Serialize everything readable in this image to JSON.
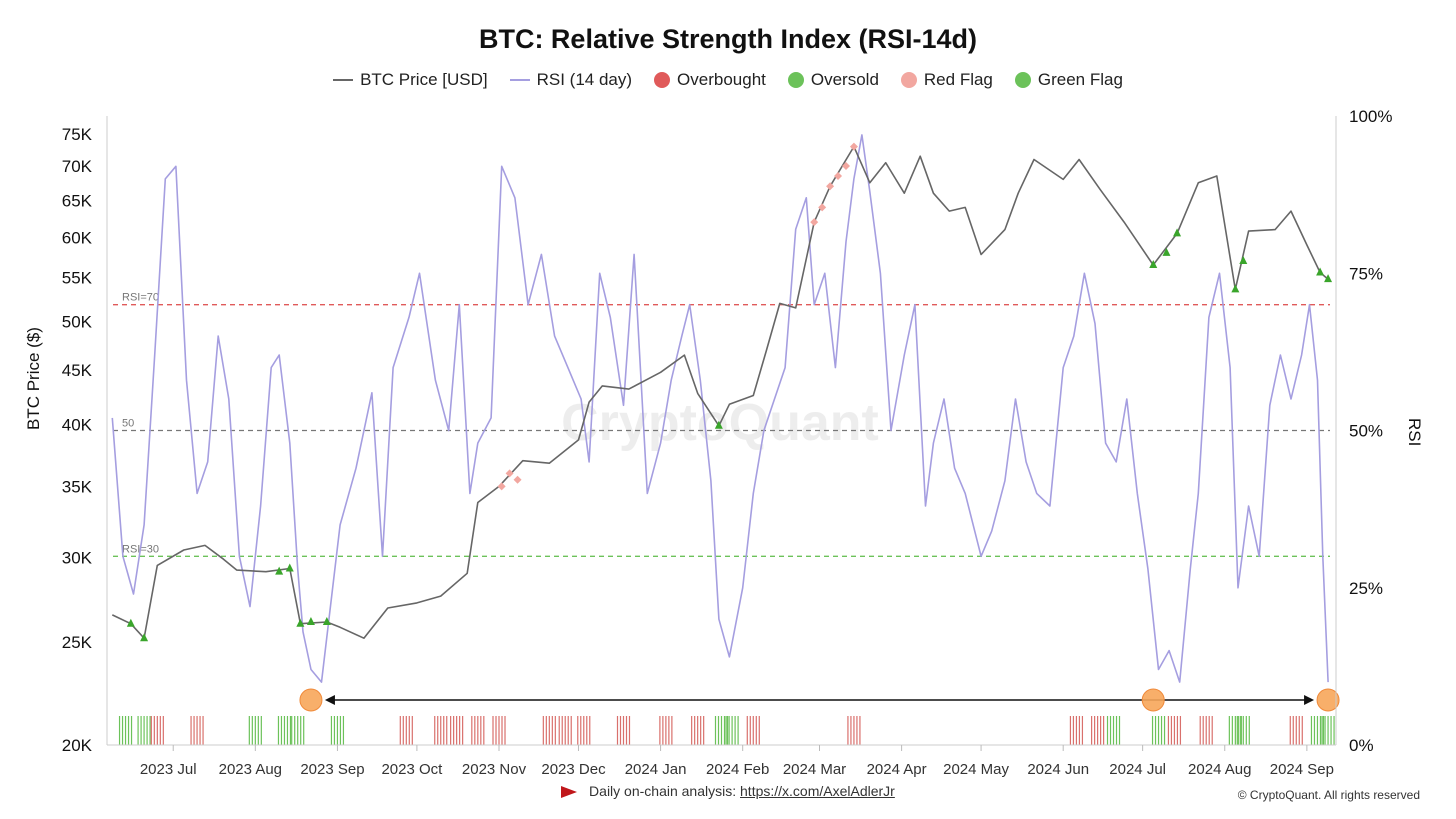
{
  "title": "BTC: Relative Strength Index (RSI-14d)",
  "legend": {
    "price": "BTC Price [USD]",
    "rsi": "RSI (14 day)",
    "overbought": "Overbought",
    "oversold": "Oversold",
    "red_flag": "Red Flag",
    "green_flag": "Green Flag"
  },
  "colors": {
    "price": "#666666",
    "rsi": "#a59ee0",
    "overbought": "#e05a5a",
    "oversold": "#3aa52b",
    "red_flag": "#f2a7a0",
    "green_flag": "#6cc25a",
    "marker": "#f7a65a"
  },
  "axes": {
    "left_label": "BTC Price ($)",
    "right_label": "RSI"
  },
  "watermark": "CryptoQuant",
  "footer": {
    "text": "Daily on-chain analysis:",
    "link": "https://x.com/AxelAdlerJr"
  },
  "copyright": "© CryptoQuant. All rights reserved",
  "chart_data": {
    "type": "line",
    "title": "BTC: Relative Strength Index (RSI-14d)",
    "x_ticks": [
      "2023 Jul",
      "2023 Aug",
      "2023 Sep",
      "2023 Oct",
      "2023 Nov",
      "2023 Dec",
      "2024 Jan",
      "2024 Feb",
      "2024 Mar",
      "2024 Apr",
      "2024 May",
      "2024 Jun",
      "2024 Jul",
      "2024 Aug",
      "2024 Sep"
    ],
    "price_axis": {
      "label": "BTC Price ($)",
      "scale": "log",
      "ylim": [
        20000,
        78000
      ],
      "ticks": [
        20000,
        25000,
        30000,
        35000,
        40000,
        45000,
        50000,
        55000,
        60000,
        65000,
        70000,
        75000
      ],
      "tick_labels": [
        "20K",
        "25K",
        "30K",
        "35K",
        "40K",
        "45K",
        "50K",
        "55K",
        "60K",
        "65K",
        "70K",
        "75K"
      ]
    },
    "rsi_axis": {
      "label": "RSI",
      "ylim": [
        0,
        100
      ],
      "ticks": [
        0,
        25,
        50,
        75,
        100
      ],
      "tick_labels": [
        "0%",
        "25%",
        "50%",
        "75%",
        "100%"
      ]
    },
    "reference_lines": [
      {
        "label": "RSI=70",
        "value": 70,
        "color": "#e05a5a"
      },
      {
        "label": "50",
        "value": 50,
        "color": "#777777"
      },
      {
        "label": "RSI=30",
        "value": 30,
        "color": "#6cc25a"
      }
    ],
    "series": [
      {
        "name": "BTC Price [USD]",
        "axis": "price",
        "x": [
          "2023-06-08",
          "2023-06-15",
          "2023-06-20",
          "2023-06-25",
          "2023-07-05",
          "2023-07-13",
          "2023-07-20",
          "2023-07-25",
          "2023-08-05",
          "2023-08-14",
          "2023-08-18",
          "2023-08-28",
          "2023-09-02",
          "2023-09-11",
          "2023-09-20",
          "2023-10-01",
          "2023-10-10",
          "2023-10-20",
          "2023-10-24",
          "2023-11-01",
          "2023-11-10",
          "2023-11-20",
          "2023-12-01",
          "2023-12-05",
          "2023-12-10",
          "2023-12-20",
          "2024-01-01",
          "2024-01-10",
          "2024-01-15",
          "2024-01-23",
          "2024-01-27",
          "2024-02-05",
          "2024-02-10",
          "2024-02-15",
          "2024-02-21",
          "2024-02-28",
          "2024-03-05",
          "2024-03-14",
          "2024-03-20",
          "2024-03-26",
          "2024-04-02",
          "2024-04-08",
          "2024-04-13",
          "2024-04-19",
          "2024-04-25",
          "2024-05-01",
          "2024-05-10",
          "2024-05-15",
          "2024-05-21",
          "2024-06-01",
          "2024-06-07",
          "2024-06-15",
          "2024-06-24",
          "2024-07-05",
          "2024-07-14",
          "2024-07-22",
          "2024-07-29",
          "2024-08-05",
          "2024-08-10",
          "2024-08-20",
          "2024-08-26",
          "2024-09-01",
          "2024-09-06",
          "2024-09-09"
        ],
        "values": [
          26500,
          26000,
          25200,
          29500,
          30500,
          30800,
          29900,
          29200,
          29100,
          29300,
          26000,
          26100,
          25800,
          25200,
          26900,
          27200,
          27600,
          29000,
          33800,
          35000,
          37000,
          36800,
          38700,
          42000,
          43500,
          43200,
          44800,
          46500,
          42800,
          39900,
          41800,
          42600,
          47000,
          52000,
          51500,
          62000,
          67000,
          73000,
          67500,
          70500,
          66000,
          71500,
          66000,
          63500,
          64000,
          57800,
          61000,
          66000,
          71000,
          68000,
          71000,
          66500,
          62000,
          56500,
          60500,
          67500,
          68500,
          53600,
          60800,
          61000,
          63500,
          59000,
          55600,
          54800
        ]
      },
      {
        "name": "RSI (14 day)",
        "axis": "rsi",
        "x": [
          "2023-06-08",
          "2023-06-12",
          "2023-06-16",
          "2023-06-20",
          "2023-06-24",
          "2023-06-28",
          "2023-07-02",
          "2023-07-06",
          "2023-07-10",
          "2023-07-14",
          "2023-07-18",
          "2023-07-22",
          "2023-07-26",
          "2023-07-30",
          "2023-08-03",
          "2023-08-07",
          "2023-08-10",
          "2023-08-14",
          "2023-08-17",
          "2023-08-19",
          "2023-08-22",
          "2023-08-26",
          "2023-09-02",
          "2023-09-08",
          "2023-09-14",
          "2023-09-18",
          "2023-09-22",
          "2023-09-28",
          "2023-10-02",
          "2023-10-08",
          "2023-10-13",
          "2023-10-17",
          "2023-10-21",
          "2023-10-24",
          "2023-10-29",
          "2023-11-02",
          "2023-11-07",
          "2023-11-12",
          "2023-11-17",
          "2023-11-22",
          "2023-11-27",
          "2023-12-02",
          "2023-12-05",
          "2023-12-09",
          "2023-12-13",
          "2023-12-18",
          "2023-12-22",
          "2023-12-27",
          "2024-01-01",
          "2024-01-05",
          "2024-01-09",
          "2024-01-12",
          "2024-01-16",
          "2024-01-20",
          "2024-01-23",
          "2024-01-27",
          "2024-02-01",
          "2024-02-05",
          "2024-02-09",
          "2024-02-13",
          "2024-02-17",
          "2024-02-21",
          "2024-02-25",
          "2024-02-28",
          "2024-03-03",
          "2024-03-07",
          "2024-03-11",
          "2024-03-14",
          "2024-03-17",
          "2024-03-20",
          "2024-03-24",
          "2024-03-28",
          "2024-04-02",
          "2024-04-06",
          "2024-04-10",
          "2024-04-13",
          "2024-04-17",
          "2024-04-21",
          "2024-04-25",
          "2024-05-01",
          "2024-05-05",
          "2024-05-10",
          "2024-05-14",
          "2024-05-18",
          "2024-05-22",
          "2024-05-27",
          "2024-06-01",
          "2024-06-05",
          "2024-06-09",
          "2024-06-13",
          "2024-06-17",
          "2024-06-21",
          "2024-06-25",
          "2024-06-29",
          "2024-07-03",
          "2024-07-07",
          "2024-07-11",
          "2024-07-15",
          "2024-07-19",
          "2024-07-22",
          "2024-07-26",
          "2024-07-30",
          "2024-08-03",
          "2024-08-06",
          "2024-08-10",
          "2024-08-14",
          "2024-08-18",
          "2024-08-22",
          "2024-08-26",
          "2024-08-30",
          "2024-09-02",
          "2024-09-05",
          "2024-09-07",
          "2024-09-09"
        ],
        "values": [
          52,
          30,
          24,
          35,
          62,
          90,
          92,
          58,
          40,
          45,
          65,
          55,
          30,
          22,
          38,
          60,
          62,
          48,
          28,
          18,
          12,
          10,
          35,
          44,
          56,
          30,
          60,
          68,
          75,
          58,
          50,
          70,
          40,
          48,
          52,
          92,
          87,
          70,
          78,
          65,
          60,
          55,
          45,
          75,
          68,
          54,
          78,
          40,
          48,
          58,
          65,
          70,
          58,
          42,
          20,
          14,
          25,
          40,
          50,
          55,
          60,
          82,
          87,
          70,
          75,
          60,
          80,
          90,
          97,
          88,
          75,
          50,
          62,
          70,
          38,
          48,
          55,
          44,
          40,
          30,
          34,
          42,
          55,
          45,
          40,
          38,
          60,
          65,
          75,
          67,
          48,
          45,
          55,
          40,
          28,
          12,
          15,
          10,
          28,
          40,
          68,
          75,
          60,
          25,
          38,
          30,
          54,
          62,
          55,
          62,
          70,
          58,
          30,
          10
        ]
      },
      {
        "name": "Overbought",
        "axis": "price",
        "x": [
          "2023-11-02",
          "2023-11-05",
          "2023-11-08",
          "2024-02-28",
          "2024-03-02",
          "2024-03-05",
          "2024-03-08",
          "2024-03-11",
          "2024-03-14"
        ],
        "values": [
          35000,
          36000,
          35500,
          62000,
          64000,
          67000,
          68500,
          70000,
          73000
        ]
      },
      {
        "name": "Oversold",
        "axis": "price",
        "x": [
          "2023-06-15",
          "2023-06-20",
          "2023-08-10",
          "2023-08-14",
          "2023-08-18",
          "2023-08-22",
          "2023-08-28",
          "2024-01-23",
          "2024-07-05",
          "2024-07-10",
          "2024-07-14",
          "2024-08-05",
          "2024-08-08",
          "2024-09-06",
          "2024-09-09"
        ],
        "values": [
          26000,
          25200,
          29100,
          29300,
          26000,
          26100,
          26100,
          39900,
          56500,
          58000,
          60500,
          53600,
          57000,
          55600,
          54800
        ]
      }
    ],
    "flags": {
      "green": [
        "2023-06-13",
        "2023-06-20",
        "2023-08-01",
        "2023-08-12",
        "2023-08-17",
        "2023-09-01",
        "2024-01-24",
        "2024-01-28",
        "2024-06-20",
        "2024-07-07",
        "2024-08-05",
        "2024-08-08",
        "2024-09-05",
        "2024-09-09"
      ],
      "red": [
        "2023-06-25",
        "2023-07-10",
        "2023-09-27",
        "2023-10-10",
        "2023-10-16",
        "2023-10-24",
        "2023-11-01",
        "2023-11-20",
        "2023-11-26",
        "2023-12-03",
        "2023-12-18",
        "2024-01-03",
        "2024-01-15",
        "2024-02-05",
        "2024-03-14",
        "2024-06-06",
        "2024-06-14",
        "2024-07-13",
        "2024-07-25",
        "2024-08-28"
      ]
    },
    "annotations": {
      "lows": [
        "2023-08-22",
        "2024-07-05",
        "2024-09-09"
      ],
      "arrow": [
        "2023-08-22",
        "2024-09-09"
      ]
    }
  }
}
